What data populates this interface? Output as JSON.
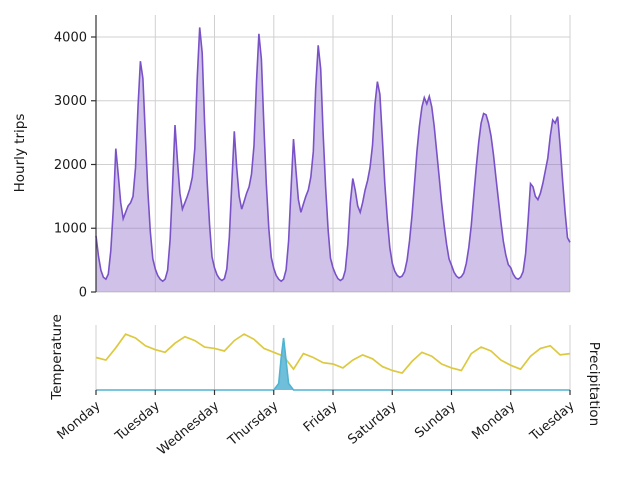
{
  "figure": {
    "top_ylabel": "Hourly trips",
    "bottom_left_label": "Temperature",
    "bottom_right_label": "Precipitation"
  },
  "colors": {
    "trips_line": "#7a52c7",
    "trips_fill": "rgba(140,107,200,0.42)",
    "temperature": "#ddc93f",
    "temperature_label": "#d4c53a",
    "precipitation": "#4fb3d2",
    "precipitation_fill": "rgba(95,183,214,0.9)",
    "precipitation_label": "#62b9d6",
    "grid": "#d0d0d0",
    "spine": "#333333",
    "tick_text": "#1a1a1a"
  },
  "chart_data": [
    {
      "type": "area",
      "title": "",
      "ylabel": "Hourly trips",
      "x_unit": "hours",
      "xlim": [
        0,
        192
      ],
      "ylim": [
        0,
        4345
      ],
      "yticks": [
        0,
        1000,
        2000,
        3000,
        4000
      ],
      "grid": "both",
      "day_ticks": {
        "positions": [
          0,
          24,
          48,
          72,
          96,
          120,
          144,
          168,
          192
        ],
        "labels": [
          "Monday",
          "Tuesday",
          "Wednesday",
          "Thursday",
          "Friday",
          "Saturday",
          "Sunday",
          "Monday",
          "Tuesday"
        ]
      },
      "series": [
        {
          "name": "hourly_trips",
          "x_step": 1,
          "values": [
            880,
            560,
            340,
            230,
            200,
            280,
            650,
            1300,
            2250,
            1850,
            1400,
            1150,
            1250,
            1350,
            1400,
            1500,
            1950,
            2900,
            3620,
            3350,
            2450,
            1600,
            950,
            520,
            360,
            260,
            200,
            170,
            200,
            340,
            820,
            1650,
            2620,
            2050,
            1550,
            1300,
            1400,
            1500,
            1620,
            1800,
            2250,
            3350,
            4150,
            3750,
            2650,
            1750,
            1050,
            550,
            380,
            270,
            210,
            180,
            210,
            360,
            850,
            1700,
            2520,
            1950,
            1500,
            1300,
            1420,
            1550,
            1650,
            1850,
            2300,
            3300,
            4050,
            3650,
            2600,
            1700,
            1000,
            540,
            370,
            260,
            200,
            170,
            200,
            350,
            800,
            1600,
            2400,
            1900,
            1450,
            1250,
            1380,
            1500,
            1600,
            1800,
            2200,
            3200,
            3870,
            3500,
            2500,
            1650,
            980,
            530,
            380,
            280,
            210,
            180,
            210,
            340,
            750,
            1400,
            1780,
            1600,
            1350,
            1250,
            1400,
            1600,
            1750,
            1950,
            2300,
            2950,
            3300,
            3100,
            2400,
            1700,
            1150,
            700,
            450,
            330,
            260,
            230,
            250,
            320,
            500,
            800,
            1200,
            1700,
            2200,
            2600,
            2900,
            3050,
            2950,
            3070,
            2900,
            2600,
            2200,
            1800,
            1400,
            1050,
            750,
            520,
            420,
            310,
            250,
            220,
            240,
            300,
            450,
            700,
            1050,
            1500,
            1950,
            2350,
            2650,
            2800,
            2780,
            2650,
            2450,
            2150,
            1800,
            1450,
            1100,
            800,
            580,
            430,
            380,
            280,
            220,
            200,
            230,
            320,
            600,
            1100,
            1700,
            1650,
            1500,
            1450,
            1550,
            1700,
            1900,
            2100,
            2450,
            2700,
            2650,
            2750,
            2300,
            1750,
            1250,
            850,
            780
          ]
        }
      ]
    },
    {
      "type": "line",
      "title": "",
      "ylabel_left": "Temperature",
      "ylabel_right": "Precipitation",
      "xlim": [
        0,
        192
      ],
      "ylim": [
        0,
        10
      ],
      "grid": "vertical",
      "series": [
        {
          "name": "temperature",
          "x_step": 4,
          "values": [
            5.0,
            4.6,
            6.5,
            8.6,
            8.0,
            6.8,
            6.2,
            5.8,
            7.2,
            8.2,
            7.6,
            6.6,
            6.4,
            6.0,
            7.6,
            8.6,
            7.8,
            6.4,
            5.8,
            5.2,
            3.2,
            5.6,
            5.0,
            4.2,
            4.0,
            3.4,
            4.6,
            5.4,
            4.8,
            3.6,
            3.0,
            2.6,
            4.4,
            5.8,
            5.2,
            4.0,
            3.4,
            3.0,
            5.6,
            6.6,
            6.0,
            4.6,
            3.8,
            3.2,
            5.2,
            6.4,
            6.8,
            5.4,
            5.6
          ]
        },
        {
          "name": "precipitation",
          "x": [
            0,
            72,
            74,
            75,
            76,
            78,
            80,
            192
          ],
          "values": [
            0,
            0,
            1,
            5,
            8,
            1,
            0,
            0
          ]
        }
      ]
    }
  ]
}
